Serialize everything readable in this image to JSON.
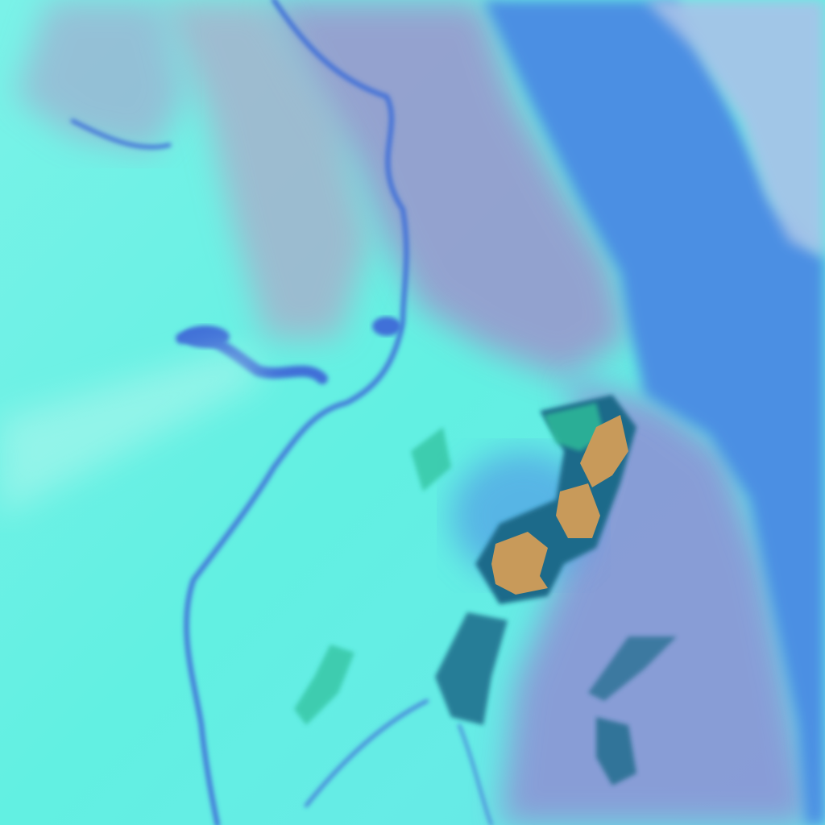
{
  "image": {
    "kind": "false-color satellite imagery",
    "colors": {
      "cloud_cyan": "#62f3e4",
      "pale_cyan": "#9ff5ea",
      "sea_blue": "#4b8fe3",
      "land_purple": "#8f88c8",
      "water_dark_blue": "#3f6fd8",
      "storm_orange": "#c89a5a",
      "storm_green": "#2fbf9a",
      "storm_dark": "#1a4f7a"
    }
  }
}
